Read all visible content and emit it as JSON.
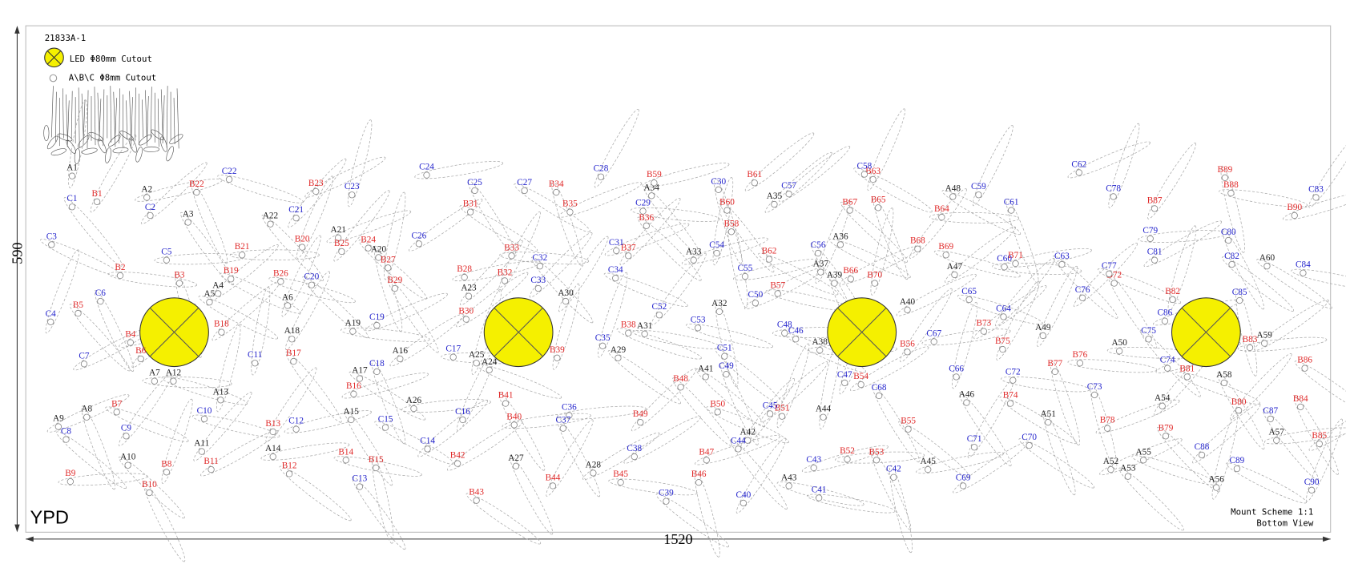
{
  "header": {
    "code": "21833A-1",
    "legend": [
      "LED Φ80mm Cutout",
      "A\\B\\C Φ8mm Cutout"
    ]
  },
  "dimensions": {
    "height": 590,
    "width": 1520
  },
  "brand": "YPD",
  "footer": [
    "Mount Scheme 1:1",
    "Bottom View"
  ],
  "holes": {
    "a": [
      "A1",
      "A2",
      "A3",
      "A4",
      "A5",
      "A6",
      "A7",
      "A8",
      "A9",
      "A10",
      "A11",
      "A12",
      "A13",
      "A14",
      "A15",
      "A16",
      "A17",
      "A18",
      "A19",
      "A20",
      "A21",
      "A22",
      "A23",
      "A24",
      "A25",
      "A26",
      "A27",
      "A28",
      "A29",
      "A30",
      "A31",
      "A32",
      "A33",
      "A34",
      "A35",
      "A36",
      "A37",
      "A38",
      "A39",
      "A40",
      "A41",
      "A42",
      "A43",
      "A44",
      "A45",
      "A46",
      "A47",
      "A48",
      "A49",
      "A50",
      "A51",
      "A52",
      "A53",
      "A54",
      "A55",
      "A56",
      "A57",
      "A58",
      "A59",
      "A60"
    ],
    "b": [
      "B1",
      "B2",
      "B3",
      "B4",
      "B5",
      "B6",
      "B7",
      "B8",
      "B9",
      "B10",
      "B11",
      "B12",
      "B13",
      "B14",
      "B15",
      "B16",
      "B17",
      "B18",
      "B19",
      "B20",
      "B21",
      "B22",
      "B23",
      "B24",
      "B25",
      "B26",
      "B27",
      "B28",
      "B29",
      "B30",
      "B31",
      "B32",
      "B33",
      "B34",
      "B35",
      "B36",
      "B37",
      "B38",
      "B39",
      "B40",
      "B41",
      "B42",
      "B43",
      "B44",
      "B45",
      "B46",
      "B47",
      "B48",
      "B49",
      "B50",
      "B51",
      "B52",
      "B53",
      "B54",
      "B55",
      "B56",
      "B57",
      "B58",
      "B59",
      "B60",
      "B61",
      "B62",
      "B63",
      "B64",
      "B65",
      "B66",
      "B67",
      "B68",
      "B69",
      "B70",
      "B71",
      "B72",
      "B73",
      "B74",
      "B75",
      "B76",
      "B77",
      "B78",
      "B79",
      "B80",
      "B81",
      "B82",
      "B83",
      "B84",
      "B85",
      "B86",
      "B87",
      "B88",
      "B89",
      "B90"
    ],
    "c": [
      "C1",
      "C2",
      "C3",
      "C4",
      "C5",
      "C6",
      "C7",
      "C8",
      "C9",
      "C10",
      "C11",
      "C12",
      "C13",
      "C14",
      "C15",
      "C16",
      "C17",
      "C18",
      "C19",
      "C20",
      "C21",
      "C22",
      "C23",
      "C24",
      "C25",
      "C26",
      "C27",
      "C28",
      "C29",
      "C30",
      "C31",
      "C32",
      "C33",
      "C34",
      "C35",
      "C36",
      "C37",
      "C38",
      "C39",
      "C40",
      "C41",
      "C42",
      "C43",
      "C44",
      "C45",
      "C46",
      "C47",
      "C48",
      "C49",
      "C50",
      "C51",
      "C52",
      "C53",
      "C54",
      "C55",
      "C56",
      "C57",
      "C58",
      "C59",
      "C60",
      "C61",
      "C62",
      "C63",
      "C64",
      "C65",
      "C66",
      "C67",
      "C68",
      "C69",
      "C70",
      "C71",
      "C72",
      "C73",
      "C74",
      "C75",
      "C76",
      "C77",
      "C78",
      "C79",
      "C80",
      "C81",
      "C82",
      "C83",
      "C84",
      "C85",
      "C86",
      "C87",
      "C88",
      "C89",
      "C90"
    ]
  }
}
